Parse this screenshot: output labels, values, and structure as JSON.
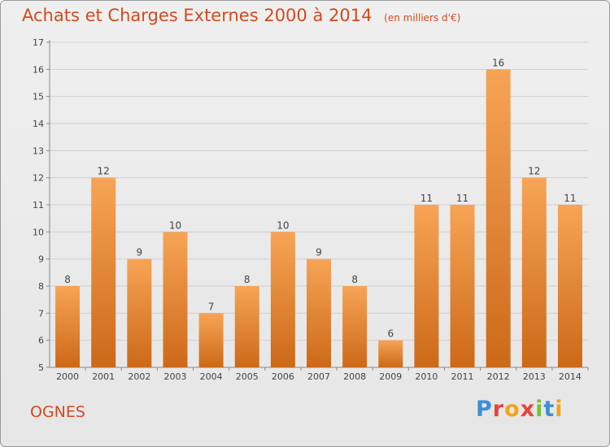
{
  "header": {
    "title": "Achats et Charges Externes 2000 à 2014",
    "subtitle": "(en milliers d'€)"
  },
  "footer": {
    "commune": "OGNES",
    "logo_text": "Proxiti"
  },
  "colors": {
    "title": "#d24a20",
    "bar_top": "#f7a456",
    "bar_bottom": "#cc6918",
    "axis": "#888888",
    "grid": "#cfcfcf"
  },
  "chart_data": {
    "type": "bar",
    "title": "Achats et Charges Externes 2000 à 2014",
    "subtitle": "(en milliers d'€)",
    "xlabel": "",
    "ylabel": "",
    "categories": [
      "2000",
      "2001",
      "2002",
      "2003",
      "2004",
      "2005",
      "2006",
      "2007",
      "2008",
      "2009",
      "2010",
      "2011",
      "2012",
      "2013",
      "2014"
    ],
    "values": [
      8,
      12,
      9,
      10,
      7,
      8,
      10,
      9,
      8,
      6,
      11,
      11,
      16,
      12,
      11
    ],
    "ylim": [
      5,
      17
    ],
    "yticks": [
      5,
      6,
      7,
      8,
      9,
      10,
      11,
      12,
      13,
      14,
      15,
      16,
      17
    ],
    "grid": true,
    "legend": "none"
  }
}
